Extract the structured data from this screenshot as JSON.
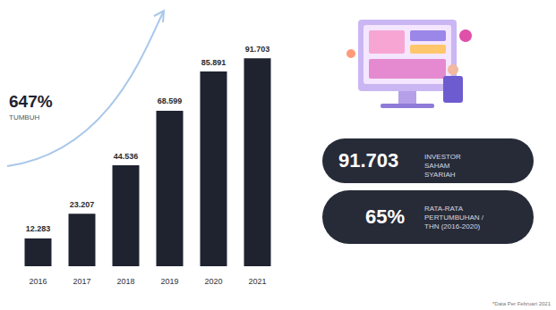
{
  "chart_data": {
    "type": "bar",
    "categories": [
      "2016",
      "2017",
      "2018",
      "2019",
      "2020",
      "2021"
    ],
    "values": [
      12283,
      23207,
      44536,
      68599,
      85891,
      91703
    ],
    "value_labels": [
      "12.283",
      "23.207",
      "44.536",
      "68.599",
      "85.891",
      "91.703"
    ],
    "color": "#1f2330",
    "ylim": [
      0,
      95000
    ],
    "grid": false,
    "data_labels": true,
    "tick_labels": "x"
  },
  "annotation": {
    "value": "647%",
    "label": "TUMBUH"
  },
  "stats": [
    {
      "value": "91.703",
      "label": "INVESTOR SAHAM SYARIAH"
    },
    {
      "value": "65%",
      "label": "RATA-RATA PERTUMBUHAN /THN (2016-2020)"
    }
  ],
  "footnote": "*Data Per Februari 2021"
}
